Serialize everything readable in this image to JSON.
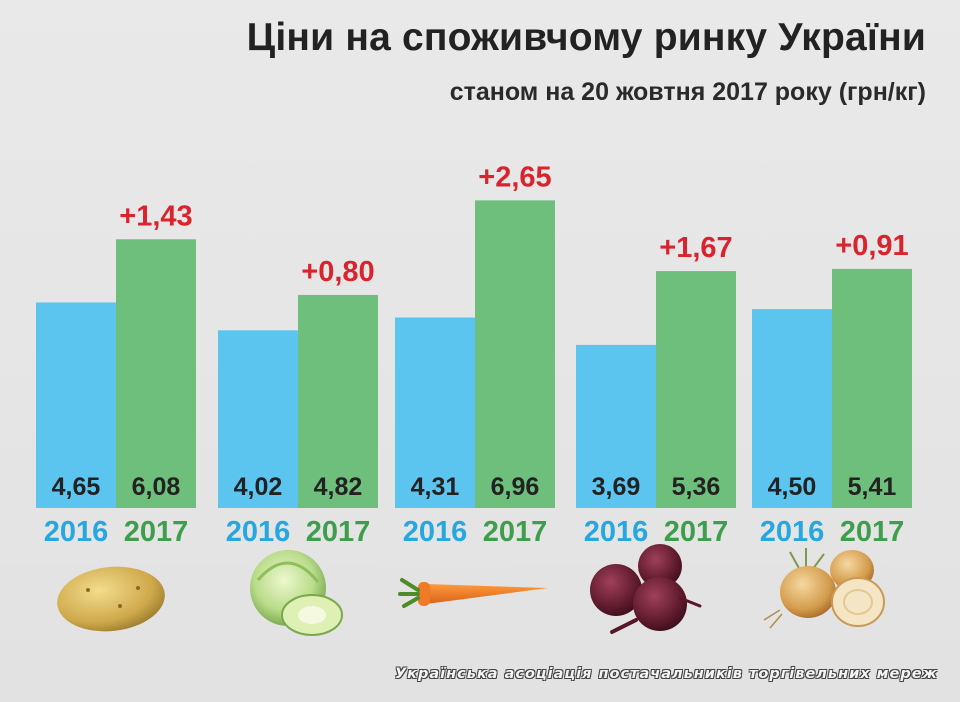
{
  "title": "Ціни на споживчому ринку України",
  "subtitle": "станом на 20 жовтня 2017 року (грн/кг)",
  "footer": "Українська асоціація постачальників торгівельних мереж",
  "colors": {
    "bar2016": "#5bc5ef",
    "bar2017": "#6dbf7b",
    "label2016": "#27a7e0",
    "label2017": "#3f9e4c",
    "delta": "#d9232d"
  },
  "products": [
    {
      "icon": "potato-icon"
    },
    {
      "icon": "cabbage-icon"
    },
    {
      "icon": "carrot-icon"
    },
    {
      "icon": "beetroot-icon"
    },
    {
      "icon": "onion-icon"
    }
  ],
  "chart_data": {
    "type": "bar",
    "categories": [
      "",
      "",
      "",
      "",
      ""
    ],
    "series": [
      {
        "name": "2016",
        "values": [
          4.65,
          4.02,
          4.31,
          3.69,
          4.5
        ],
        "labels": [
          "4,65",
          "4,02",
          "4,31",
          "3,69",
          "4,50"
        ]
      },
      {
        "name": "2017",
        "values": [
          6.08,
          4.82,
          6.96,
          5.36,
          5.41
        ],
        "labels": [
          "6,08",
          "4,82",
          "6,96",
          "5,36",
          "5,41"
        ]
      }
    ],
    "differences": [
      "+1,43",
      "+0,80",
      "+2,65",
      "+1,67",
      "+0,91"
    ],
    "ylim": [
      0,
      7.5
    ],
    "grid": false,
    "legend": "none"
  }
}
